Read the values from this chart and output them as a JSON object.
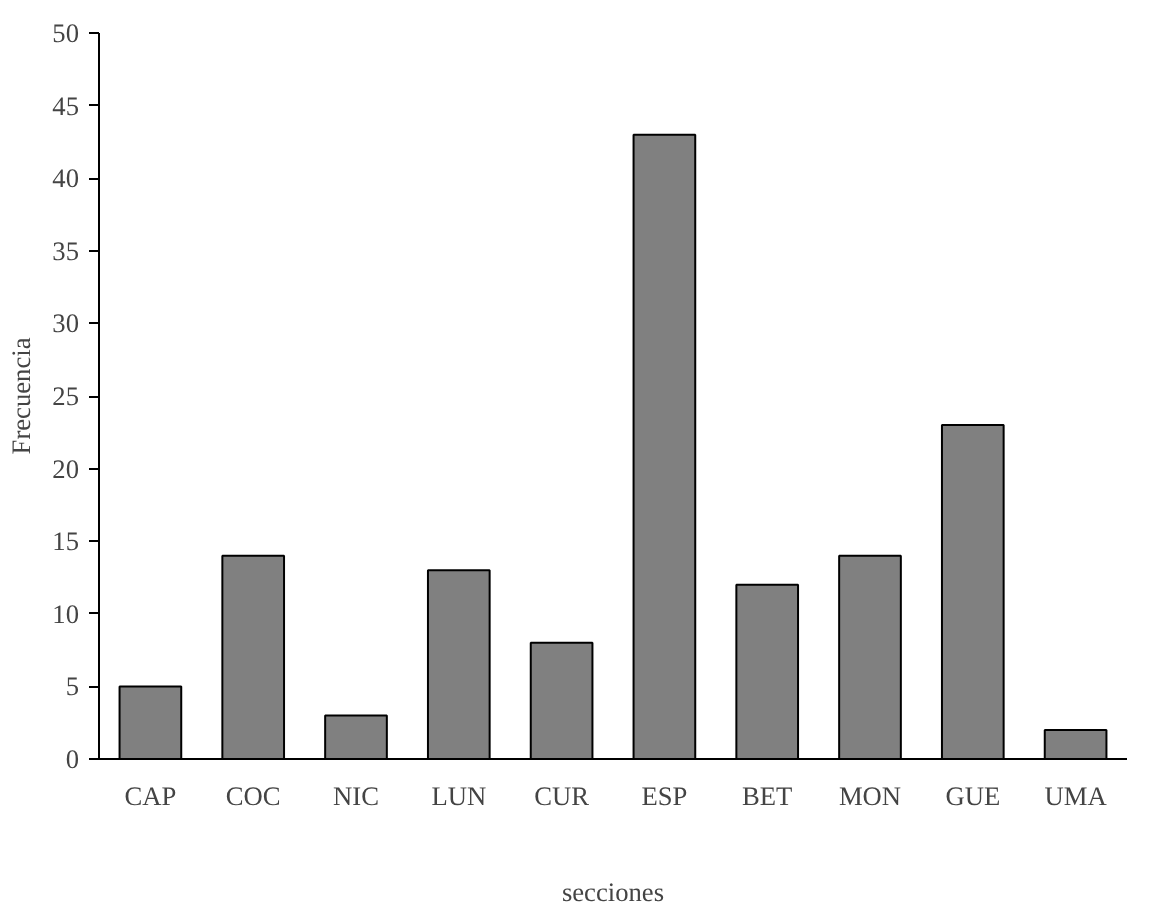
{
  "chart_data": {
    "type": "bar",
    "xlabel": "secciones",
    "ylabel": "Frecuencia",
    "categories": [
      "CAP",
      "COC",
      "NIC",
      "LUN",
      "CUR",
      "ESP",
      "BET",
      "MON",
      "GUE",
      "UMA"
    ],
    "values": [
      5,
      14,
      3,
      13,
      8,
      43,
      12,
      14,
      23,
      2
    ],
    "color": "#808080",
    "ylim": [
      0,
      50
    ],
    "yticks": [
      0,
      5,
      10,
      15,
      20,
      25,
      30,
      35,
      40,
      45,
      50
    ],
    "grid": false
  }
}
